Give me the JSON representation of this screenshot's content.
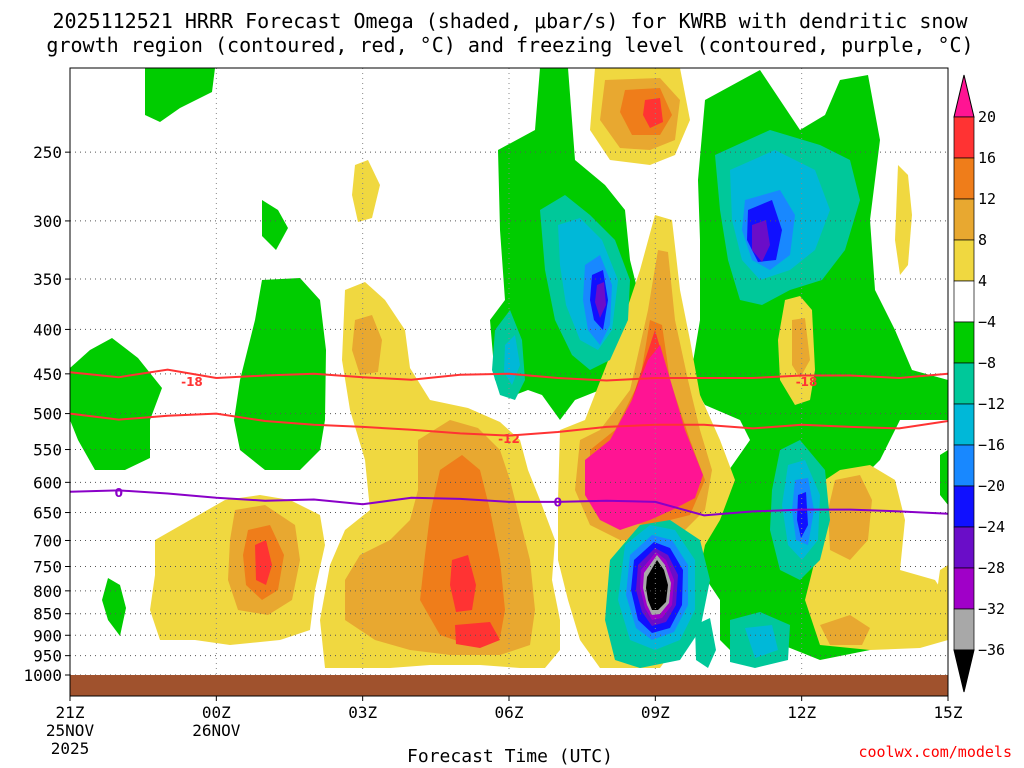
{
  "title": {
    "line1": "2025112521 HRRR Forecast Omega (shaded, μbar/s) for KWRB with dendritic snow",
    "line2": "growth region (contoured, red, °C) and freezing level (contoured, purple, °C)"
  },
  "credit": "coolwx.com/models",
  "chart_data": {
    "type": "heatmap",
    "xlabel": "Forecast Time (UTC)",
    "ylabel": "",
    "x_ticks": [
      {
        "hour": 0,
        "label": "21Z",
        "date": "25NOV",
        "year": "2025"
      },
      {
        "hour": 3,
        "label": "00Z",
        "date": "26NOV",
        "year": ""
      },
      {
        "hour": 6,
        "label": "03Z",
        "date": "",
        "year": ""
      },
      {
        "hour": 9,
        "label": "06Z",
        "date": "",
        "year": ""
      },
      {
        "hour": 12,
        "label": "09Z",
        "date": "",
        "year": ""
      },
      {
        "hour": 15,
        "label": "12Z",
        "date": "",
        "year": ""
      },
      {
        "hour": 18,
        "label": "15Z",
        "date": "",
        "year": ""
      }
    ],
    "xlim": [
      0,
      18
    ],
    "y_ticks": [
      "250",
      "300",
      "350",
      "400",
      "450",
      "500",
      "550",
      "600",
      "650",
      "700",
      "750",
      "800",
      "850",
      "900",
      "950",
      "1000"
    ],
    "y_values": [
      250,
      300,
      350,
      400,
      450,
      500,
      550,
      600,
      650,
      700,
      750,
      800,
      850,
      900,
      950,
      1000
    ],
    "ylim_hpa": [
      200,
      1000
    ],
    "y_scale": "log-pressure",
    "grid": true,
    "colorbar": {
      "labels": [
        "20",
        "16",
        "12",
        "8",
        "4",
        "−4",
        "−8",
        "−12",
        "−16",
        "−20",
        "−24",
        "−28",
        "−32",
        "−36"
      ],
      "colors": [
        "#ff1493",
        "#ff3333",
        "#ef7d1a",
        "#e8a830",
        "#f0d840",
        "#ffffff",
        "#00cc00",
        "#00c89a",
        "#00b8d8",
        "#1888ff",
        "#1010ff",
        "#6a0dc8",
        "#a000c8",
        "#a8a8a8",
        "#000000"
      ]
    },
    "contours": [
      {
        "name": "-18 (upper)",
        "color": "#ff3333",
        "label": "-18",
        "label_positions": [
          {
            "hour": 2.5,
            "hpa": 460
          },
          {
            "hour": 15.1,
            "hpa": 460
          }
        ],
        "points": [
          [
            0,
            448
          ],
          [
            1,
            454
          ],
          [
            2,
            445
          ],
          [
            3,
            455
          ],
          [
            4,
            452
          ],
          [
            5,
            450
          ],
          [
            6,
            454
          ],
          [
            7,
            457
          ],
          [
            8,
            451
          ],
          [
            9,
            450
          ],
          [
            10,
            455
          ],
          [
            11,
            458
          ],
          [
            12,
            455
          ],
          [
            13,
            455
          ],
          [
            14,
            455
          ],
          [
            15,
            452
          ],
          [
            16,
            452
          ],
          [
            17,
            455
          ],
          [
            18,
            450
          ]
        ]
      },
      {
        "name": "-12",
        "color": "#ff3333",
        "label": "-12",
        "label_positions": [
          {
            "hour": 9.0,
            "hpa": 535
          }
        ],
        "points": [
          [
            0,
            500
          ],
          [
            1,
            508
          ],
          [
            2,
            503
          ],
          [
            3,
            500
          ],
          [
            4,
            510
          ],
          [
            5,
            515
          ],
          [
            6,
            518
          ],
          [
            7,
            522
          ],
          [
            8,
            527
          ],
          [
            9,
            530
          ],
          [
            10,
            525
          ],
          [
            11,
            518
          ],
          [
            12,
            515
          ],
          [
            13,
            515
          ],
          [
            14,
            520
          ],
          [
            15,
            515
          ],
          [
            16,
            518
          ],
          [
            17,
            520
          ],
          [
            18,
            510
          ]
        ]
      },
      {
        "name": "0",
        "color": "#8a00c8",
        "label": "0",
        "label_positions": [
          {
            "hour": 1.0,
            "hpa": 617
          },
          {
            "hour": 10.0,
            "hpa": 633
          }
        ],
        "points": [
          [
            0,
            615
          ],
          [
            1,
            613
          ],
          [
            2,
            618
          ],
          [
            3,
            625
          ],
          [
            4,
            630
          ],
          [
            5,
            628
          ],
          [
            6,
            636
          ],
          [
            7,
            625
          ],
          [
            8,
            627
          ],
          [
            9,
            632
          ],
          [
            10,
            632
          ],
          [
            11,
            630
          ],
          [
            12,
            632
          ],
          [
            13,
            655
          ],
          [
            14,
            648
          ],
          [
            15,
            645
          ],
          [
            16,
            645
          ],
          [
            17,
            648
          ],
          [
            18,
            652
          ]
        ]
      }
    ]
  }
}
